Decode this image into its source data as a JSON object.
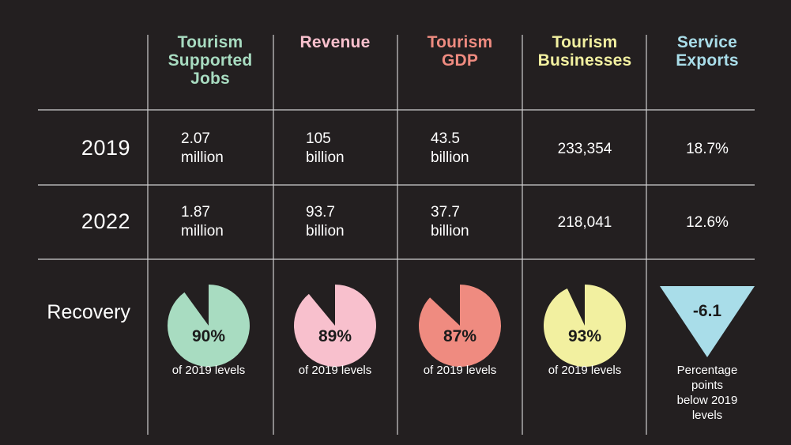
{
  "chart_data": {
    "type": "table",
    "columns": [
      {
        "label": "Tourism Supported Jobs",
        "lines": [
          "Tourism",
          "Supported",
          "Jobs"
        ],
        "color": "#a8dcc1"
      },
      {
        "label": "Revenue",
        "lines": [
          "Revenue"
        ],
        "color": "#f8c0cd"
      },
      {
        "label": "Tourism GDP",
        "lines": [
          "Tourism",
          "GDP"
        ],
        "color": "#ef8b80"
      },
      {
        "label": "Tourism Businesses",
        "lines": [
          "Tourism",
          "Businesses"
        ],
        "color": "#f2f0a0"
      },
      {
        "label": "Service Exports",
        "lines": [
          "Service",
          "Exports"
        ],
        "color": "#a9dde9"
      }
    ],
    "rows": [
      {
        "label": "2019",
        "cells": [
          [
            "2.07",
            "million"
          ],
          [
            "105",
            "billion"
          ],
          [
            "43.5",
            "billion"
          ],
          [
            "233,354"
          ],
          [
            "18.7%"
          ]
        ]
      },
      {
        "label": "2022",
        "cells": [
          [
            "1.87",
            "million"
          ],
          [
            "93.7",
            "billion"
          ],
          [
            "37.7",
            "billion"
          ],
          [
            "218,041"
          ],
          [
            "12.6%"
          ]
        ]
      }
    ],
    "recovery": {
      "label": "Recovery",
      "items": [
        {
          "kind": "pie",
          "value": 90,
          "text": "90%",
          "caption": [
            "of 2019 levels"
          ]
        },
        {
          "kind": "pie",
          "value": 89,
          "text": "89%",
          "caption": [
            "of 2019 levels"
          ]
        },
        {
          "kind": "pie",
          "value": 87,
          "text": "87%",
          "caption": [
            "of 2019 levels"
          ]
        },
        {
          "kind": "pie",
          "value": 93,
          "text": "93%",
          "caption": [
            "of 2019 levels"
          ]
        },
        {
          "kind": "triangle",
          "value": -6.1,
          "text": "-6.1",
          "caption": [
            "Percentage",
            "points",
            "below 2019",
            "levels"
          ]
        }
      ]
    }
  }
}
